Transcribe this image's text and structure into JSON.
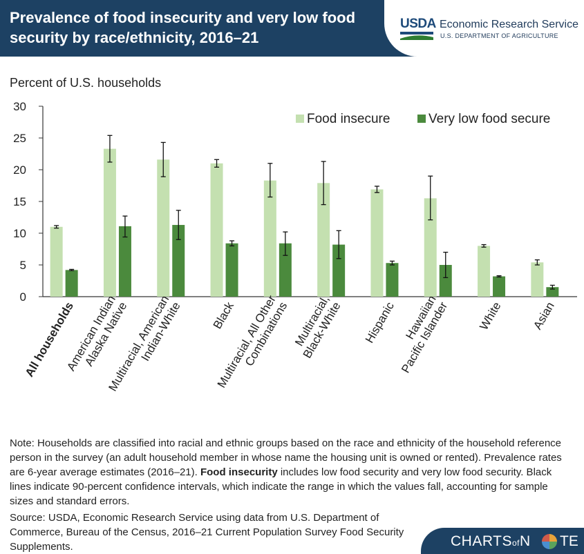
{
  "header": {
    "title": "Prevalence of food insecurity and very low food security by race/ethnicity, 2016–21",
    "logo_abbrev": "USDA",
    "agency": "Economic Research Service",
    "department": "U.S. DEPARTMENT OF AGRICULTURE"
  },
  "colors": {
    "food_insecure": "#c4e0b0",
    "very_low": "#4b8a3d",
    "header_bg": "#1d4163"
  },
  "chart_data": {
    "type": "bar",
    "ylabel": "Percent of U.S. households",
    "ylim": [
      0,
      30
    ],
    "yticks": [
      0,
      5,
      10,
      15,
      20,
      25,
      30
    ],
    "legend_position": "top-right",
    "categories": [
      "All households",
      "American Indian\nAlaska Native",
      "Multiracial, American\nIndian-White",
      "Black",
      "Multiracial, All Other\nCombinations",
      "Multiracial,\nBlack-White",
      "Hispanic",
      "Hawaiian\nPacific Islander",
      "White",
      "Asian"
    ],
    "series": [
      {
        "name": "Food insecure",
        "values": [
          11.0,
          23.3,
          21.6,
          21.0,
          18.3,
          17.9,
          16.9,
          15.5,
          8.0,
          5.4
        ],
        "ci_low": [
          10.8,
          21.2,
          18.9,
          20.4,
          15.7,
          14.5,
          16.4,
          12.1,
          7.8,
          5.0
        ],
        "ci_high": [
          11.2,
          25.4,
          24.3,
          21.6,
          21.0,
          21.3,
          17.4,
          19.0,
          8.2,
          5.8
        ]
      },
      {
        "name": "Very low food secure",
        "values": [
          4.2,
          11.1,
          11.3,
          8.4,
          8.4,
          8.2,
          5.3,
          5.0,
          3.2,
          1.5
        ],
        "ci_low": [
          4.1,
          9.4,
          9.0,
          8.0,
          6.5,
          6.0,
          5.0,
          3.0,
          3.1,
          1.2
        ],
        "ci_high": [
          4.3,
          12.7,
          13.6,
          8.8,
          10.2,
          10.4,
          5.6,
          7.0,
          3.3,
          1.8
        ]
      }
    ]
  },
  "note": {
    "text_1": "Note: Households are classified into racial and ethnic groups based on the race and ethnicity of the household reference person in the survey (an adult household member in whose name the housing unit is owned or rented). Prevalence rates are 6-year average estimates (2016–21). ",
    "bold": "Food insecurity",
    "text_2": " includes low food security and very low food security. Black lines indicate 90-percent confidence intervals, which indicate the range in which the values fall, accounting for sample sizes and standard errors."
  },
  "source": "Source: USDA, Economic Research Service using data from U.S. Department of Commerce, Bureau of the Census, 2016–21 Current Population Survey Food Security Supplements.",
  "branding": {
    "part1": "CHARTS",
    "part2": "of",
    "part3": "N",
    "part4": "TE"
  }
}
